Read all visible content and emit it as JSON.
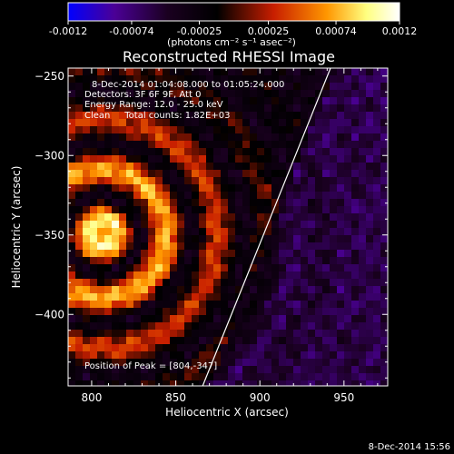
{
  "chart_data": {
    "type": "heatmap",
    "title": "Reconstructed RHESSI Image",
    "xlabel": "Heliocentric X (arcsec)",
    "ylabel": "Heliocentric Y (arcsec)",
    "xlim": [
      786,
      976
    ],
    "ylim": [
      -445,
      -245
    ],
    "xticks": [
      800,
      850,
      900,
      950
    ],
    "yticks": [
      -250,
      -300,
      -350,
      -400
    ],
    "colorbar": {
      "range": [
        -0.0012,
        0.0012
      ],
      "ticks": [
        "-0.0012",
        "-0.00074",
        "-0.00025",
        "0.00025",
        "0.00074",
        "0.0012"
      ],
      "units_label": "(photons cm⁻² s⁻¹ asec⁻²)",
      "colors": [
        "#0000ff",
        "#4b0096",
        "#1a0020",
        "#000000",
        "#c81e00",
        "#ff9600",
        "#ffff80",
        "#ffffff"
      ]
    },
    "annotations": {
      "line1": "8-Dec-2014 01:04:08.000 to 01:05:24.000",
      "line2": "Detectors: 3F 6F 9F, Att 0",
      "line3": "Energy Range: 12.0 - 25.0 keV",
      "line4": "Clean     Total counts: 1.82E+03",
      "peak": "Position of Peak = [804,-347]"
    },
    "limb_line": {
      "x": [
        866,
        942
      ],
      "y": [
        -445,
        -245
      ]
    },
    "timestamp": "8-Dec-2014 15:56"
  }
}
